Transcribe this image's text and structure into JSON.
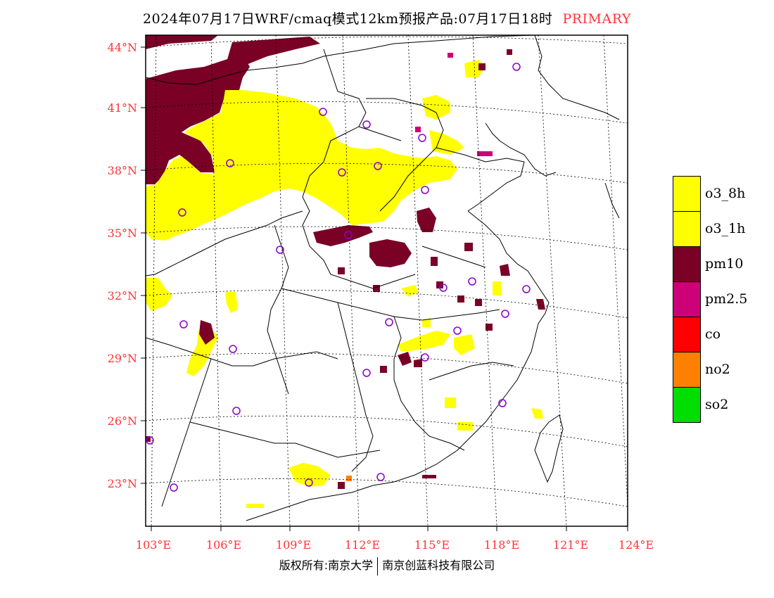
{
  "header": {
    "title": "2024年07月17日WRF/cmaq模式12km预报产品:07月17日18时",
    "tag": "PRIMARY"
  },
  "map": {
    "lat_labels": [
      "44°N",
      "41°N",
      "38°N",
      "35°N",
      "32°N",
      "29°N",
      "26°N",
      "23°N"
    ],
    "lon_labels": [
      "103°E",
      "106°E",
      "109°E",
      "112°E",
      "115°E",
      "118°E",
      "121°E",
      "124°E"
    ],
    "label_color": "#ff3333",
    "pollutant_colors": {
      "o3": "#ffff00",
      "pm10": "#7a0026",
      "pm2_5": "#cc0077",
      "co": "#ff0000",
      "no2": "#ff8000",
      "so2": "#00dd00"
    },
    "station_marker_color": "#8800cc",
    "station_count": 27
  },
  "legend": {
    "items": [
      {
        "label": "o3_8h",
        "color": "#ffff00"
      },
      {
        "label": "o3_1h",
        "color": "#ffff00"
      },
      {
        "label": "pm10",
        "color": "#7a0026"
      },
      {
        "label": "pm2.5",
        "color": "#cc0077"
      },
      {
        "label": "co",
        "color": "#ff0000"
      },
      {
        "label": "no2",
        "color": "#ff8000"
      },
      {
        "label": "so2",
        "color": "#00dd00"
      }
    ]
  },
  "footer": {
    "left": "版权所有:南京大学",
    "right": "南京创蓝科技有限公司"
  }
}
